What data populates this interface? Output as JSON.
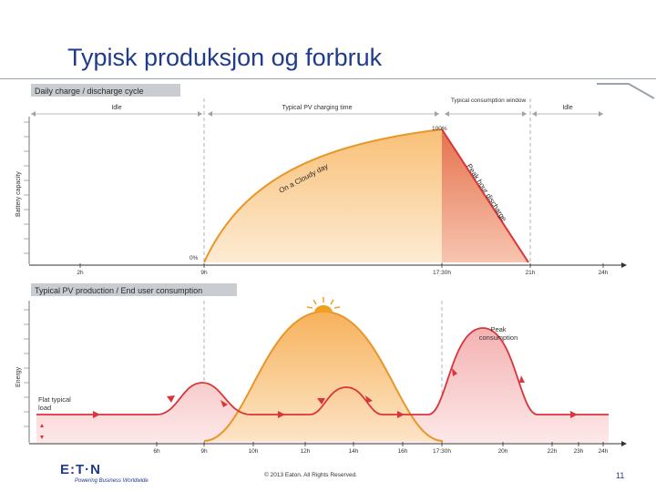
{
  "slide": {
    "title": "Typisk produksjon og forbruk",
    "footer_copyright": "© 2013 Eaton. All Rights Reserved.",
    "page_number": "11",
    "logo_text": "E:T·N",
    "logo_tagline": "Powering Business Worldwide"
  },
  "top_chart": {
    "header": "Daily charge / discharge cycle",
    "y_label": "Battery capacity",
    "phase_idle_left": "Idle",
    "phase_charging": "Typical PV charging time",
    "phase_consumption": "Typical consumption window",
    "phase_idle_right": "Idle",
    "curve_label": "On a Cloudy day",
    "peak_label": "Peak hour discharge",
    "label_100": "100%",
    "label_0": "0%",
    "x_ticks": [
      "2h",
      "9h",
      "17:30h",
      "21h",
      "24h"
    ]
  },
  "bottom_chart": {
    "header": "Typical PV production / End user consumption",
    "y_label": "Energy",
    "flat_load_label_1": "Flat typical",
    "flat_load_label_2": "load",
    "peak_consumption_1": "Peak",
    "peak_consumption_2": "consumption",
    "x_ticks": [
      "6h",
      "9h",
      "10h",
      "12h",
      "14h",
      "16h",
      "17:30h",
      "20h",
      "22h",
      "23h",
      "24h"
    ]
  },
  "colors": {
    "title_blue": "#1f3c8c",
    "pv_orange": "#e8962a",
    "load_red": "#d9353a",
    "header_gray": "#c9ccd1"
  }
}
